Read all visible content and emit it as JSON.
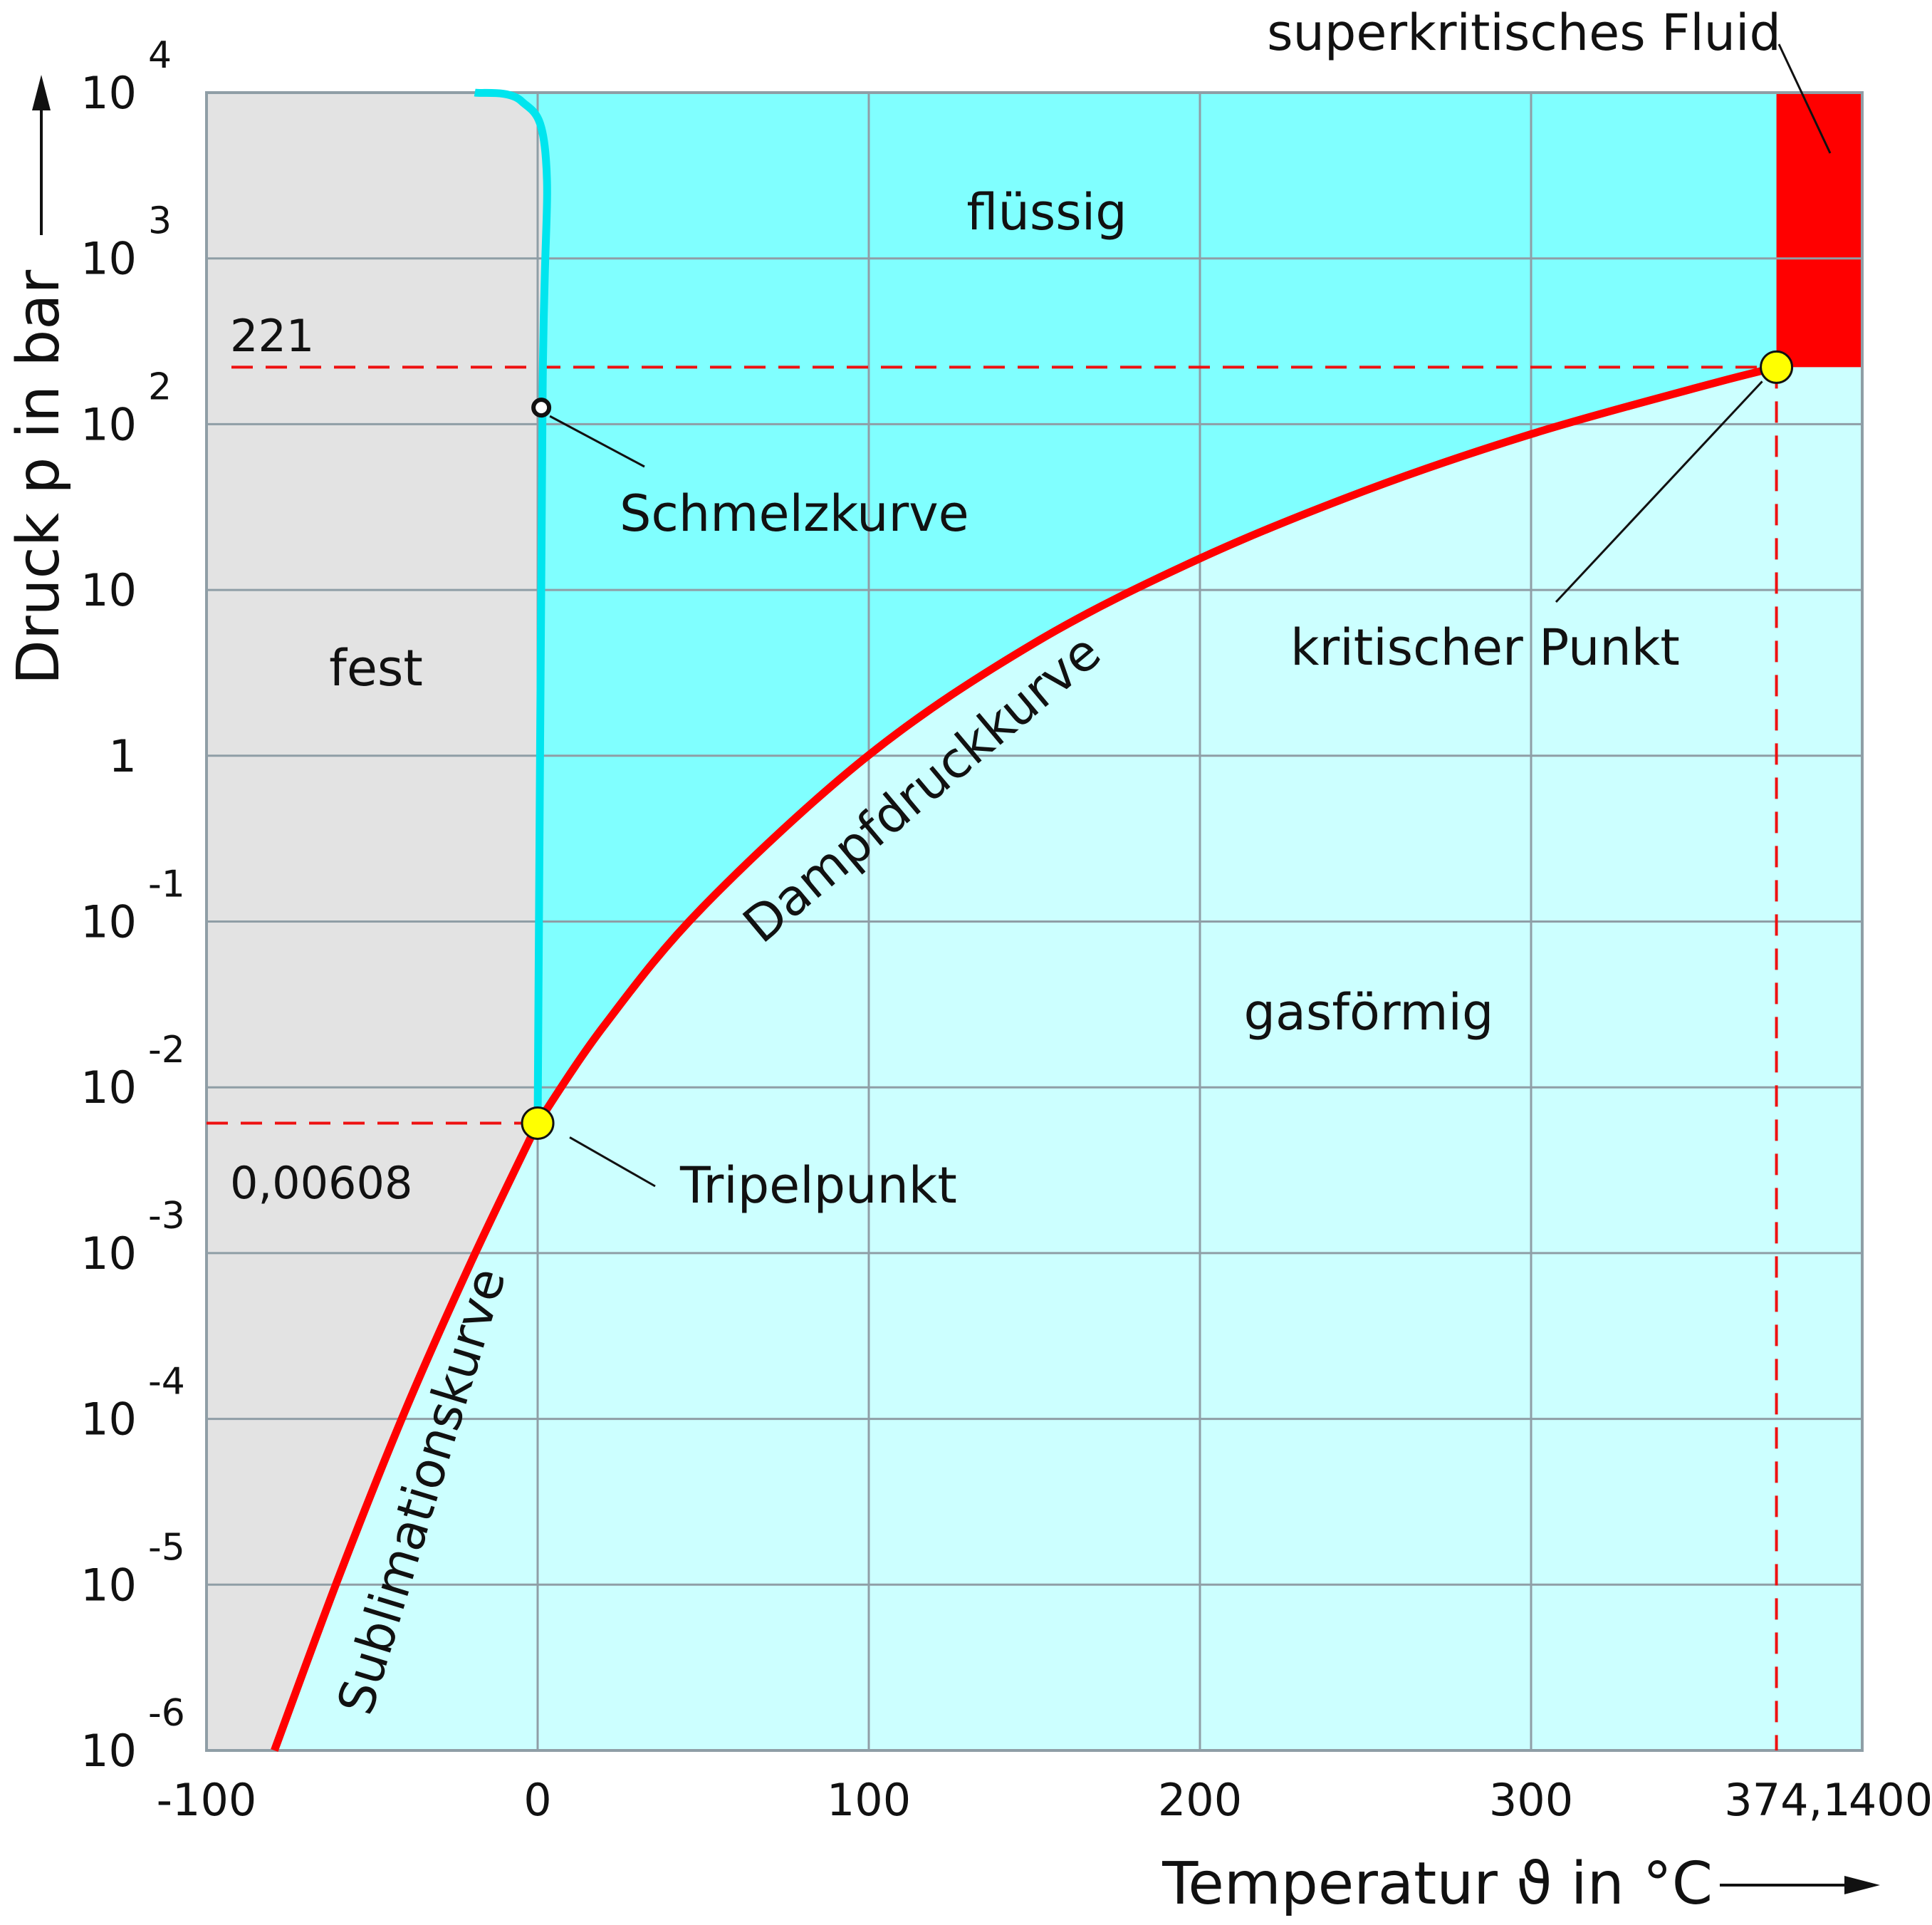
{
  "chart_data": {
    "type": "line",
    "xlabel": "Temperatur ϑ in °C",
    "ylabel": "Druck p in bar",
    "xlim": [
      -100,
      400
    ],
    "ylim": [
      -6,
      4
    ],
    "y_scale": "log",
    "x_ticks": [
      {
        "value": -100,
        "label": "-100"
      },
      {
        "value": 0,
        "label": "0"
      },
      {
        "value": 100,
        "label": "100"
      },
      {
        "value": 200,
        "label": "200"
      },
      {
        "value": 300,
        "label": "300"
      },
      {
        "value": 400,
        "label": "400"
      }
    ],
    "y_ticks": [
      {
        "value": 4,
        "base": "10",
        "exp": "4"
      },
      {
        "value": 3,
        "base": "10",
        "exp": "3"
      },
      {
        "value": 2,
        "base": "10",
        "exp": "2"
      },
      {
        "value": 1,
        "base": "10",
        "exp": ""
      },
      {
        "value": 0,
        "base": "1",
        "exp": ""
      },
      {
        "value": -1,
        "base": "10",
        "exp": "-1"
      },
      {
        "value": -2,
        "base": "10",
        "exp": "-2"
      },
      {
        "value": -3,
        "base": "10",
        "exp": "-3"
      },
      {
        "value": -4,
        "base": "10",
        "exp": "-4"
      },
      {
        "value": -5,
        "base": "10",
        "exp": "-5"
      },
      {
        "value": -6,
        "base": "10",
        "exp": "-6"
      }
    ],
    "grid": true,
    "regions": [
      {
        "key": "fest",
        "label": "fest",
        "color": "#e3e3e3"
      },
      {
        "key": "fluessig",
        "label": "flüssig",
        "color": "#80ffff"
      },
      {
        "key": "gas",
        "label": "gasförmig",
        "color": "#ccffff"
      },
      {
        "key": "fluid",
        "label": "superkritisches Fluid",
        "color": "#ff0000"
      }
    ],
    "series": [
      {
        "name": "Sublimationskurve",
        "color": "#ff0000",
        "points": [
          [
            -79.5,
            -6
          ],
          [
            -60,
            -4.95
          ],
          [
            -40,
            -3.95
          ],
          [
            -20,
            -3.05
          ],
          [
            0.01,
            -2.216
          ]
        ]
      },
      {
        "name": "Dampfdruckkurve",
        "color": "#ff0000",
        "points": [
          [
            0.01,
            -2.216
          ],
          [
            20,
            -1.63
          ],
          [
            50,
            -0.91
          ],
          [
            100,
            0.004
          ],
          [
            150,
            0.68
          ],
          [
            200,
            1.19
          ],
          [
            250,
            1.6
          ],
          [
            300,
            1.94
          ],
          [
            350,
            2.22
          ],
          [
            374.1,
            2.344
          ]
        ]
      },
      {
        "name": "Schmelzkurve",
        "color": "#00e5ee",
        "points": [
          [
            0.01,
            -2.216
          ],
          [
            1.5,
            2.2
          ],
          [
            2.5,
            3.6
          ],
          [
            -5,
            3.95
          ],
          [
            -19,
            4
          ]
        ]
      }
    ],
    "points": [
      {
        "name": "Tripelpunkt",
        "x": 0.01,
        "y": -2.216,
        "value_label": "0,00608",
        "color": "#ffff00"
      },
      {
        "name": "kritischer Punkt",
        "x": 374.1,
        "y": 2.344,
        "value_label": "221",
        "x_label": "374,1",
        "color": "#ffff00"
      }
    ],
    "annotations": [
      {
        "key": "schmelz",
        "text": "Schmelzkurve"
      },
      {
        "key": "tripel",
        "text": "Tripelpunkt"
      },
      {
        "key": "kritisch",
        "text": "kritischer Punkt"
      },
      {
        "key": "sublimation",
        "text": "Sublimationskurve"
      },
      {
        "key": "dampf",
        "text": "Dampfdruckkurve"
      },
      {
        "key": "fluid",
        "text": "superkritisches Fluid"
      }
    ]
  }
}
